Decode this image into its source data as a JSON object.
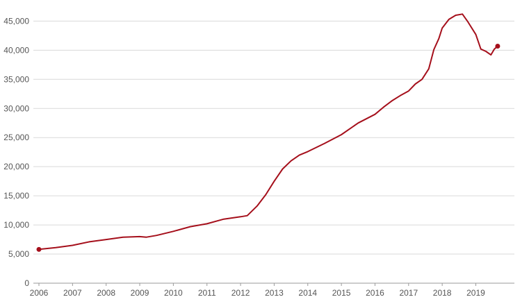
{
  "chart_data": {
    "type": "line",
    "title": "",
    "xlabel": "",
    "ylabel": "",
    "ylim": [
      0,
      46000
    ],
    "xlim": [
      2006,
      2019.9
    ],
    "grid": true,
    "legend": "none",
    "line_color": "#a50f1b",
    "y_ticks": [
      0,
      5000,
      10000,
      15000,
      20000,
      25000,
      30000,
      35000,
      40000,
      45000
    ],
    "y_tick_labels": [
      "0",
      "5,000",
      "10,000",
      "15,000",
      "20,000",
      "25,000",
      "30,000",
      "35,000",
      "40,000",
      "45,000"
    ],
    "x_ticks": [
      2006,
      2007,
      2008,
      2009,
      2010,
      2011,
      2012,
      2013,
      2014,
      2015,
      2016,
      2017,
      2018,
      2019
    ],
    "x_tick_labels": [
      "2006",
      "2007",
      "2008",
      "2009",
      "2010",
      "2011",
      "2012",
      "2013",
      "2014",
      "2015",
      "2016",
      "2017",
      "2018",
      "2019"
    ],
    "series": [
      {
        "x": [
          2006.0,
          2006.5,
          2007.0,
          2007.5,
          2008.0,
          2008.5,
          2009.0,
          2009.2,
          2009.5,
          2010.0,
          2010.5,
          2011.0,
          2011.5,
          2012.0,
          2012.2,
          2012.5,
          2012.75,
          2013.0,
          2013.25,
          2013.5,
          2013.75,
          2014.0,
          2014.5,
          2015.0,
          2015.5,
          2016.0,
          2016.25,
          2016.5,
          2016.75,
          2017.0,
          2017.2,
          2017.4,
          2017.6,
          2017.75,
          2017.9,
          2018.0,
          2018.2,
          2018.4,
          2018.6,
          2018.75,
          2019.0,
          2019.15,
          2019.3,
          2019.45,
          2019.55,
          2019.65
        ],
        "y": [
          5800,
          6100,
          6500,
          7100,
          7500,
          7900,
          8000,
          7900,
          8200,
          8900,
          9700,
          10200,
          11000,
          11400,
          11600,
          13300,
          15200,
          17500,
          19600,
          21000,
          22000,
          22600,
          24000,
          25500,
          27500,
          29000,
          30200,
          31300,
          32200,
          33000,
          34200,
          35000,
          36800,
          40100,
          42000,
          43800,
          45300,
          46000,
          46200,
          45000,
          42700,
          40200,
          39800,
          39200,
          40200,
          40700
        ]
      }
    ],
    "endpoints": [
      {
        "x": 2006.0,
        "y": 5800
      },
      {
        "x": 2019.65,
        "y": 40700
      }
    ]
  }
}
